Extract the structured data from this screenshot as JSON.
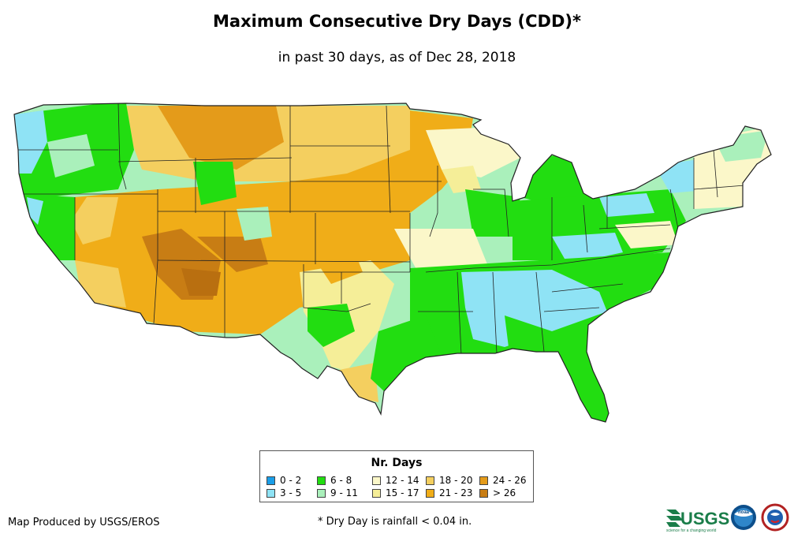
{
  "title": "Maximum Consecutive Dry Days (CDD)*",
  "subtitle": "in past 30 days, as of Dec 28, 2018",
  "legend": {
    "title": "Nr. Days",
    "items": [
      {
        "label": "0 - 2",
        "color": "#1a9ee8"
      },
      {
        "label": "3 - 5",
        "color": "#8fe3f5"
      },
      {
        "label": "6 - 8",
        "color": "#22dd11"
      },
      {
        "label": "9 - 11",
        "color": "#aaf0bb"
      },
      {
        "label": "12 - 14",
        "color": "#fbf7c9"
      },
      {
        "label": "15 - 17",
        "color": "#f5ee98"
      },
      {
        "label": "18 - 20",
        "color": "#f4cf5f"
      },
      {
        "label": "21 - 23",
        "color": "#f0ad18"
      },
      {
        "label": "24 - 26",
        "color": "#e49b1a"
      },
      {
        "label": "> 26",
        "color": "#c87d14"
      }
    ]
  },
  "credit": "Map Produced by USGS/EROS",
  "footnote": "* Dry Day is rainfall < 0.04 in.",
  "logos": {
    "usgs_text": "USGS",
    "usgs_tagline": "science for a changing world",
    "noaa_text": "noaa"
  }
}
